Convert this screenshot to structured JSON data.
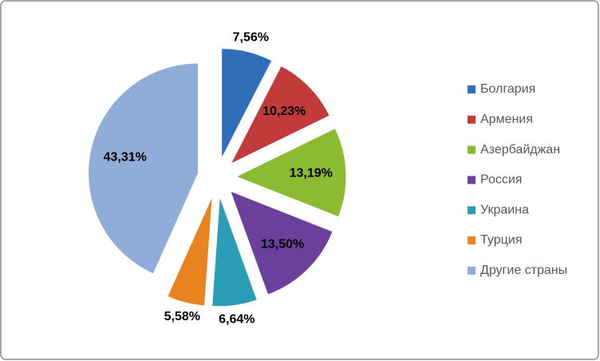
{
  "chart_data": {
    "type": "pie",
    "categories": [
      "Болгария",
      "Армения",
      "Азербайджан",
      "Россия",
      "Украина",
      "Турция",
      "Другие страны"
    ],
    "values": [
      7.56,
      10.23,
      13.19,
      13.5,
      6.64,
      5.58,
      43.31
    ],
    "value_labels": [
      "7,56%",
      "10,23%",
      "13,19%",
      "13,50%",
      "6,64%",
      "5,58%",
      "43,31%"
    ],
    "colors": [
      "#2f6fba",
      "#c23b3b",
      "#8bba33",
      "#6b409c",
      "#2b9db7",
      "#e8831f",
      "#90acd9"
    ],
    "legend": "right"
  }
}
